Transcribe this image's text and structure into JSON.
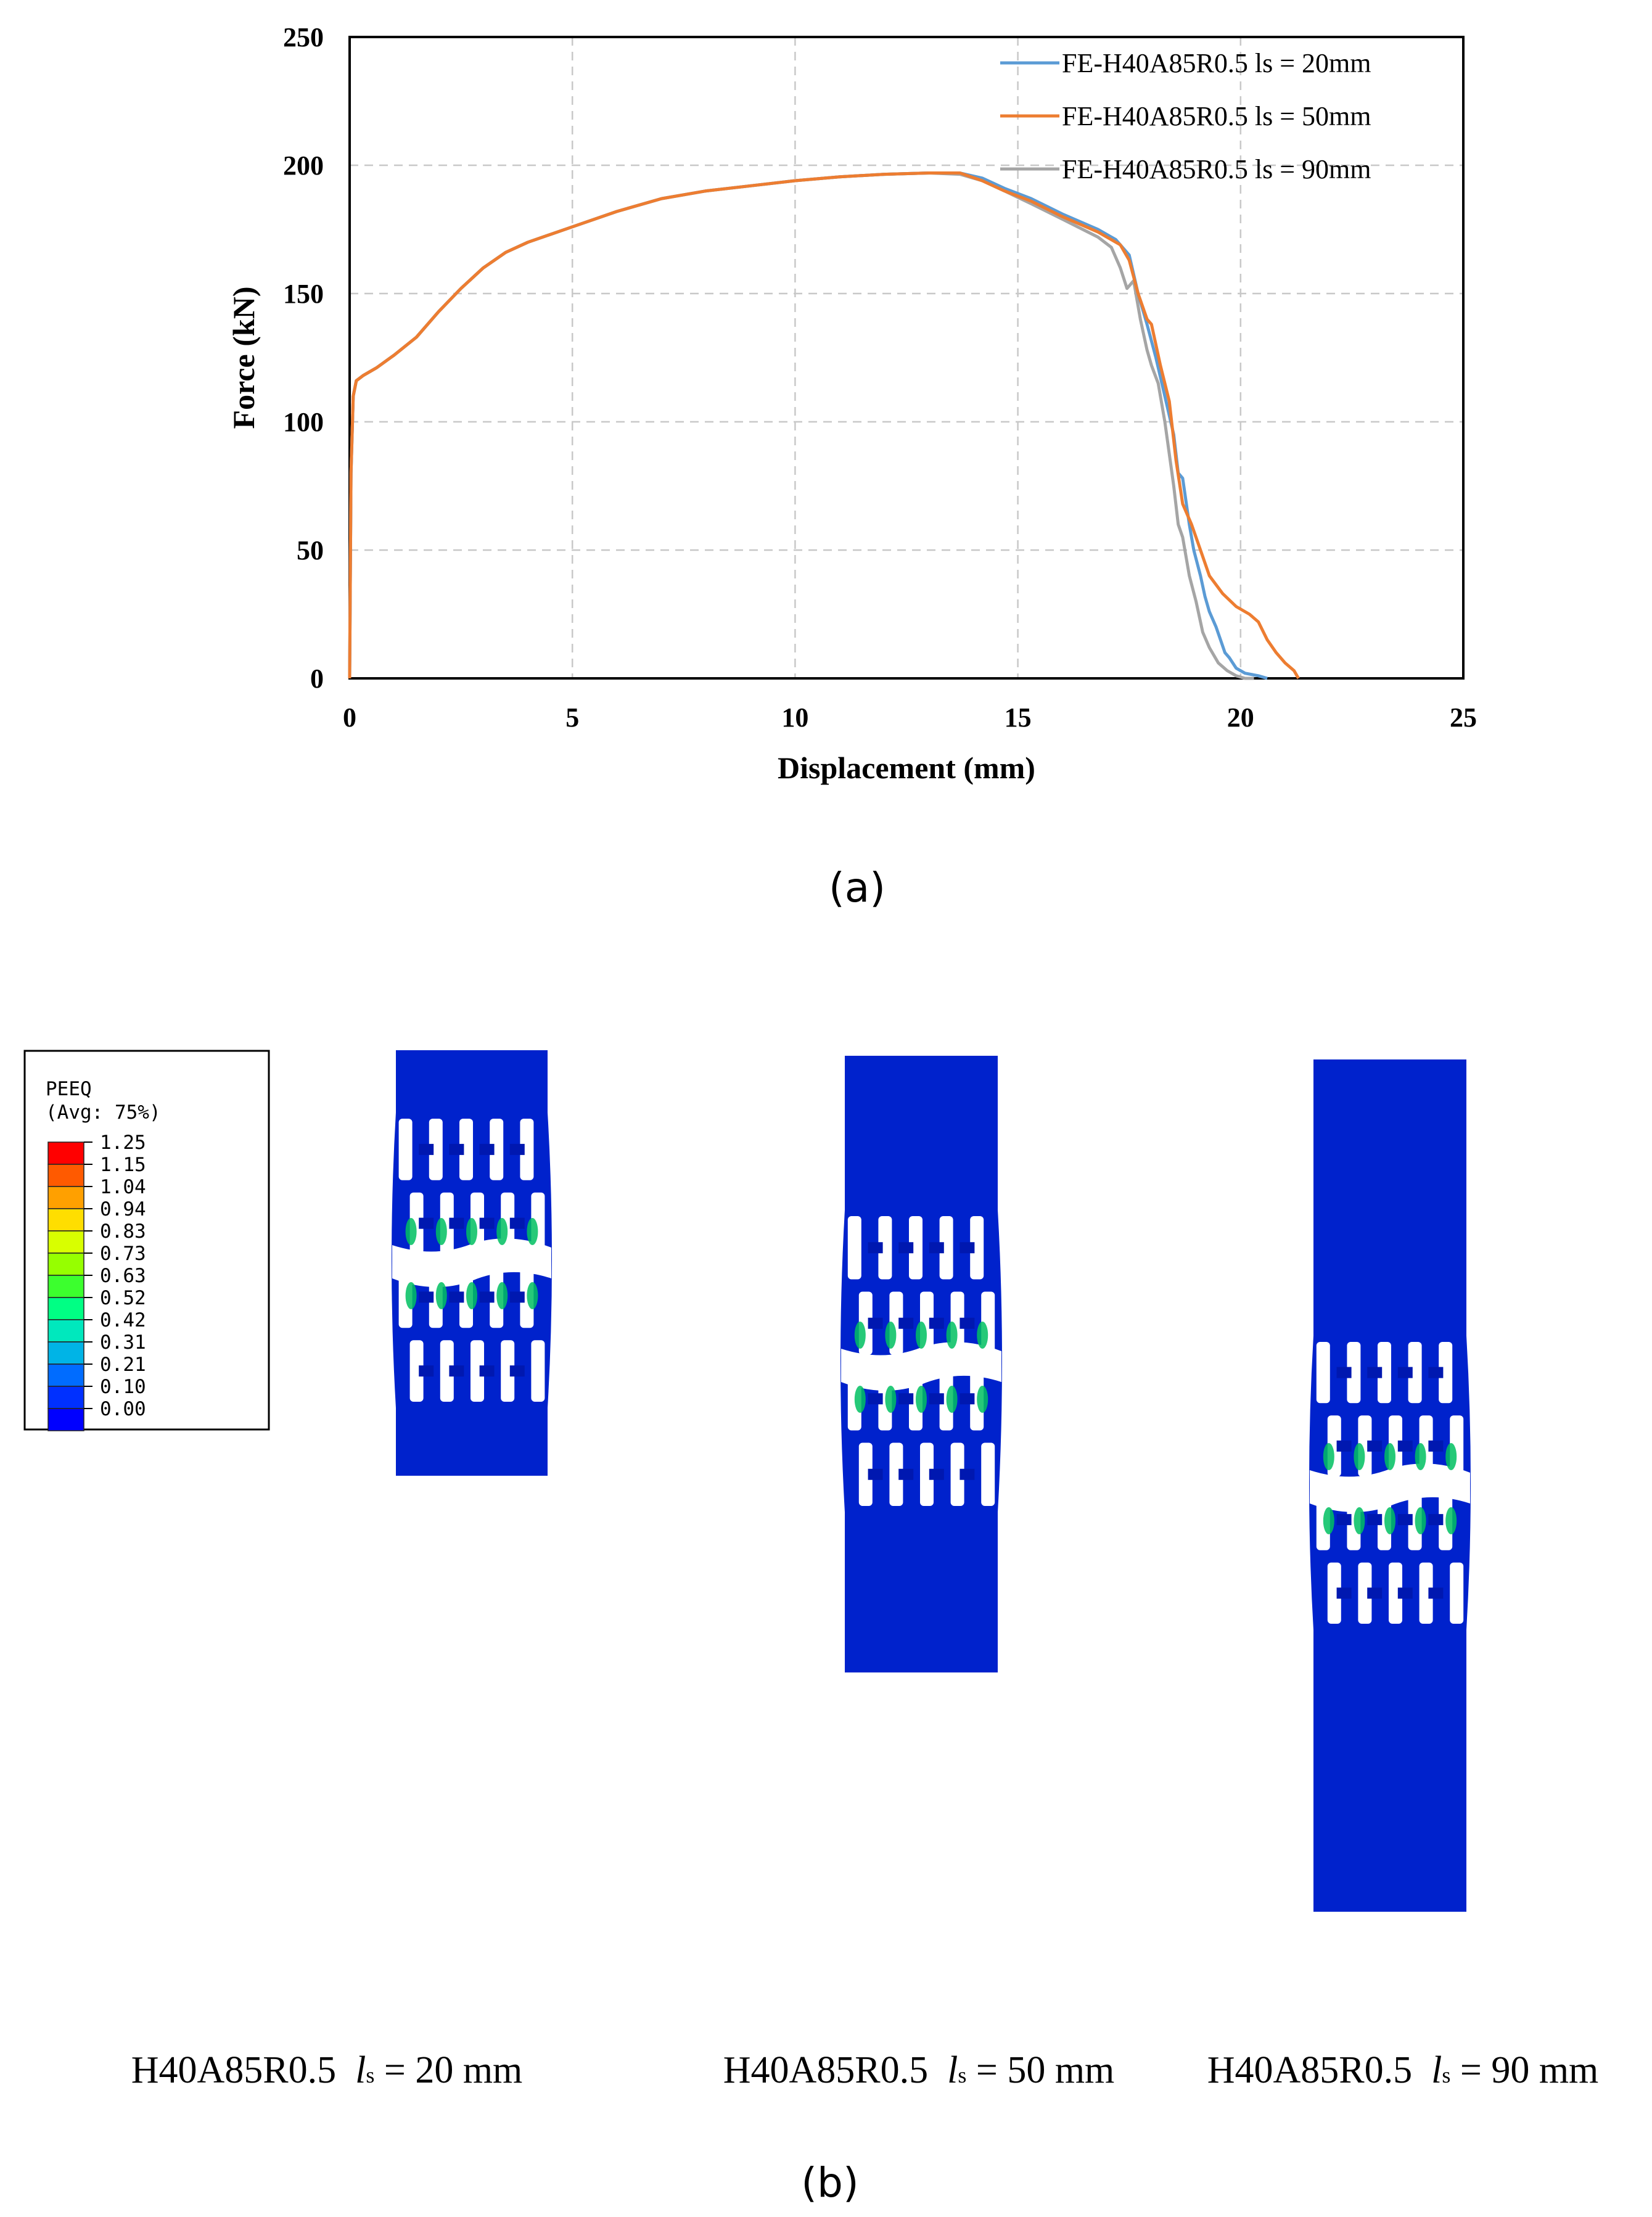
{
  "chart_data": {
    "type": "line",
    "title": "",
    "xlabel": "Displacement (mm)",
    "ylabel": "Force (kN)",
    "xlim": [
      0,
      25
    ],
    "ylim": [
      0,
      250
    ],
    "xticks": [
      "0",
      "5",
      "10",
      "15",
      "20",
      "25"
    ],
    "yticks": [
      "0",
      "50",
      "100",
      "150",
      "200",
      "250"
    ],
    "grid": true,
    "legend_position": "top-right",
    "series": [
      {
        "name": "FE-H40A85R0.5  ls = 20mm",
        "color": "#5b9bd5",
        "x": [
          0,
          0.03,
          0.08,
          0.15,
          0.3,
          0.6,
          1,
          1.5,
          2,
          2.5,
          3,
          3.5,
          4,
          5,
          6,
          7,
          8,
          9,
          10,
          11,
          12,
          13,
          13.7,
          14.2,
          14.7,
          15.3,
          16,
          16.8,
          17.2,
          17.5,
          17.7,
          17.9,
          18.1,
          18.3,
          18.5,
          18.6,
          18.7,
          18.85,
          18.95,
          19.1,
          19.2,
          19.3,
          19.45,
          19.55,
          19.65,
          19.75,
          19.9,
          20.1,
          20.4,
          20.6
        ],
        "y": [
          0,
          80,
          110,
          116,
          118,
          121,
          126,
          133,
          143,
          152,
          160,
          166,
          170,
          176,
          182,
          187,
          190,
          192,
          194,
          195.5,
          196.5,
          197,
          197,
          195,
          191,
          187,
          181,
          175,
          171,
          165,
          150,
          138,
          125,
          110,
          95,
          80,
          78,
          60,
          50,
          40,
          32,
          26,
          20,
          15,
          10,
          8,
          4,
          2,
          1,
          0
        ]
      },
      {
        "name": "FE-H40A85R0.5  ls = 50mm",
        "color": "#ed7d31",
        "x": [
          0,
          0.03,
          0.08,
          0.15,
          0.3,
          0.6,
          1,
          1.5,
          2,
          2.5,
          3,
          3.5,
          4,
          5,
          6,
          7,
          8,
          9,
          10,
          11,
          12,
          13,
          13.7,
          14.2,
          14.7,
          15.3,
          16,
          16.8,
          17.3,
          17.5,
          17.7,
          17.9,
          18.0,
          18.2,
          18.4,
          18.55,
          18.7,
          18.9,
          19.1,
          19.3,
          19.6,
          19.9,
          20.2,
          20.4,
          20.6,
          20.8,
          21.0,
          21.2,
          21.3
        ],
        "y": [
          0,
          80,
          110,
          116,
          118,
          121,
          126,
          133,
          143,
          152,
          160,
          166,
          170,
          176,
          182,
          187,
          190,
          192,
          194,
          195.5,
          196.5,
          197,
          197,
          194,
          190,
          186,
          180,
          174,
          169,
          163,
          150,
          140,
          138,
          122,
          108,
          85,
          68,
          60,
          50,
          40,
          33,
          28,
          25,
          22,
          15,
          10,
          6,
          3,
          0
        ]
      },
      {
        "name": "FE-H40A85R0.5  ls = 90mm",
        "color": "#a5a5a5",
        "x": [
          0,
          0.03,
          0.08,
          0.15,
          0.3,
          0.6,
          1,
          1.5,
          2,
          2.5,
          3,
          3.5,
          4,
          5,
          6,
          7,
          8,
          9,
          10,
          11,
          12,
          13,
          13.7,
          14.2,
          14.7,
          15.3,
          16,
          16.8,
          17.1,
          17.3,
          17.45,
          17.6,
          17.75,
          17.9,
          18.0,
          18.15,
          18.3,
          18.5,
          18.6,
          18.7,
          18.85,
          19.0,
          19.15,
          19.3,
          19.5,
          19.7,
          19.9,
          20.1,
          20.3
        ],
        "y": [
          0,
          80,
          110,
          116,
          118,
          121,
          126,
          133,
          143,
          152,
          160,
          166,
          170,
          176,
          182,
          187,
          190,
          192,
          194,
          195.5,
          196.5,
          197,
          196.5,
          194,
          190,
          185,
          179,
          172,
          168,
          160,
          152,
          155,
          140,
          128,
          122,
          115,
          100,
          75,
          60,
          55,
          40,
          30,
          18,
          12,
          6,
          3,
          1,
          0,
          0
        ]
      }
    ]
  },
  "panel_a_label": "(a)",
  "panel_b_label": "(b)",
  "contour_legend": {
    "title": "PEEQ",
    "subtitle": "(Avg: 75%)",
    "levels": [
      "1.25",
      "1.15",
      "1.04",
      "0.94",
      "0.83",
      "0.73",
      "0.63",
      "0.52",
      "0.42",
      "0.31",
      "0.21",
      "0.10",
      "0.00"
    ],
    "colors": [
      "#ff0000",
      "#ff5a00",
      "#ffa000",
      "#ffde00",
      "#d8ff00",
      "#96ff00",
      "#3cff2e",
      "#00ff84",
      "#00e8bd",
      "#00b4e6",
      "#006cff",
      "#0030ff",
      "#0000ff"
    ]
  },
  "specimen_colors": {
    "base": "#0022cc",
    "edge": "#0a3ad6",
    "hot": "#00c060"
  },
  "captions": [
    {
      "prefix": "H40A85R0.5  ",
      "symbol": "l",
      "sub": "s",
      "suffix": " = 20 mm"
    },
    {
      "prefix": "H40A85R0.5  ",
      "symbol": "l",
      "sub": "s",
      "suffix": " = 50 mm"
    },
    {
      "prefix": "H40A85R0.5  ",
      "symbol": "l",
      "sub": "s",
      "suffix": " = 90 mm"
    }
  ]
}
